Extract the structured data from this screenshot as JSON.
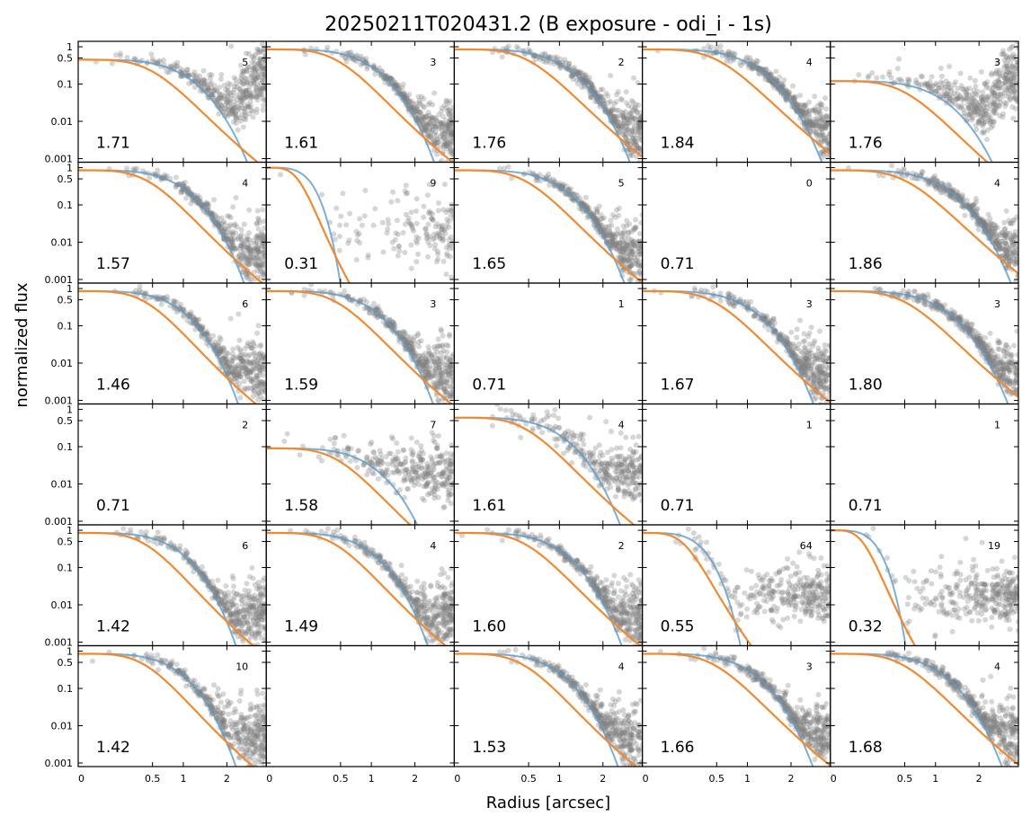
{
  "chart_data": {
    "type": "scatter",
    "title": "20250211T020431.2 (B exposure - odi_i - 1s)",
    "xlabel": "Radius [arcsec]",
    "ylabel": "normalized flux",
    "yscale": "log",
    "ylim": [
      0.0008,
      1.4
    ],
    "y_ticks": [
      1,
      0.5,
      0.1,
      0.01,
      0.001
    ],
    "y_tick_labels": [
      "1",
      "0.5",
      "0.1",
      "0.01",
      "0.001"
    ],
    "x_tick_labels": [
      "0",
      "0.5",
      "1",
      "2"
    ],
    "x_scale": "sqrt",
    "x_range": [
      0,
      3.2
    ],
    "grid": false,
    "colors": {
      "scatter": "#808080",
      "fit_gauss": "#5b9bc8",
      "fit_moffat": "#ef8a32"
    },
    "rows": 6,
    "cols": 5,
    "panels": [
      {
        "label": "1.71",
        "count": "5",
        "has_data": true,
        "amp": 0.45,
        "fwhm": 1.71,
        "upturn": true
      },
      {
        "label": "1.61",
        "count": "3",
        "has_data": true,
        "amp": 0.85,
        "fwhm": 1.61
      },
      {
        "label": "1.76",
        "count": "2",
        "has_data": true,
        "amp": 0.85,
        "fwhm": 1.76
      },
      {
        "label": "1.84",
        "count": "4",
        "has_data": true,
        "amp": 0.85,
        "fwhm": 1.84
      },
      {
        "label": "1.76",
        "count": "3",
        "has_data": true,
        "amp": 0.12,
        "fwhm": 1.76,
        "upturn": true
      },
      {
        "label": "1.57",
        "count": "4",
        "has_data": true,
        "amp": 0.85,
        "fwhm": 1.57
      },
      {
        "label": "0.31",
        "count": "9",
        "has_data": true,
        "amp": 1.0,
        "fwhm": 0.31,
        "sparse": true
      },
      {
        "label": "1.65",
        "count": "5",
        "has_data": true,
        "amp": 0.85,
        "fwhm": 1.65
      },
      {
        "label": "0.71",
        "count": "0",
        "has_data": false
      },
      {
        "label": "1.86",
        "count": "4",
        "has_data": true,
        "amp": 0.85,
        "fwhm": 1.86
      },
      {
        "label": "1.46",
        "count": "6",
        "has_data": true,
        "amp": 0.85,
        "fwhm": 1.46
      },
      {
        "label": "1.59",
        "count": "3",
        "has_data": true,
        "amp": 0.85,
        "fwhm": 1.59
      },
      {
        "label": "0.71",
        "count": "1",
        "has_data": false
      },
      {
        "label": "1.67",
        "count": "3",
        "has_data": true,
        "amp": 0.85,
        "fwhm": 1.67
      },
      {
        "label": "1.80",
        "count": "3",
        "has_data": true,
        "amp": 0.85,
        "fwhm": 1.8
      },
      {
        "label": "0.71",
        "count": "2",
        "has_data": false
      },
      {
        "label": "1.58",
        "count": "7",
        "has_data": true,
        "amp": 0.09,
        "fwhm": 1.58,
        "noisy": true
      },
      {
        "label": "1.61",
        "count": "4",
        "has_data": true,
        "amp": 0.6,
        "fwhm": 1.61,
        "noisy": true
      },
      {
        "label": "0.71",
        "count": "1",
        "has_data": false
      },
      {
        "label": "0.71",
        "count": "1",
        "has_data": false
      },
      {
        "label": "1.42",
        "count": "6",
        "has_data": true,
        "amp": 0.85,
        "fwhm": 1.42
      },
      {
        "label": "1.49",
        "count": "4",
        "has_data": true,
        "amp": 0.85,
        "fwhm": 1.49
      },
      {
        "label": "1.60",
        "count": "2",
        "has_data": true,
        "amp": 0.85,
        "fwhm": 1.6
      },
      {
        "label": "0.55",
        "count": "64",
        "has_data": true,
        "amp": 0.85,
        "fwhm": 0.55,
        "noisy": true
      },
      {
        "label": "0.32",
        "count": "19",
        "has_data": true,
        "amp": 1.0,
        "fwhm": 0.32,
        "noisy": true
      },
      {
        "label": "1.42",
        "count": "10",
        "has_data": true,
        "amp": 0.85,
        "fwhm": 1.42
      },
      {
        "label": "",
        "count": "",
        "has_data": false,
        "empty": true
      },
      {
        "label": "1.53",
        "count": "4",
        "has_data": true,
        "amp": 0.85,
        "fwhm": 1.53
      },
      {
        "label": "1.66",
        "count": "3",
        "has_data": true,
        "amp": 0.85,
        "fwhm": 1.66
      },
      {
        "label": "1.68",
        "count": "4",
        "has_data": true,
        "amp": 0.85,
        "fwhm": 1.68
      }
    ]
  }
}
